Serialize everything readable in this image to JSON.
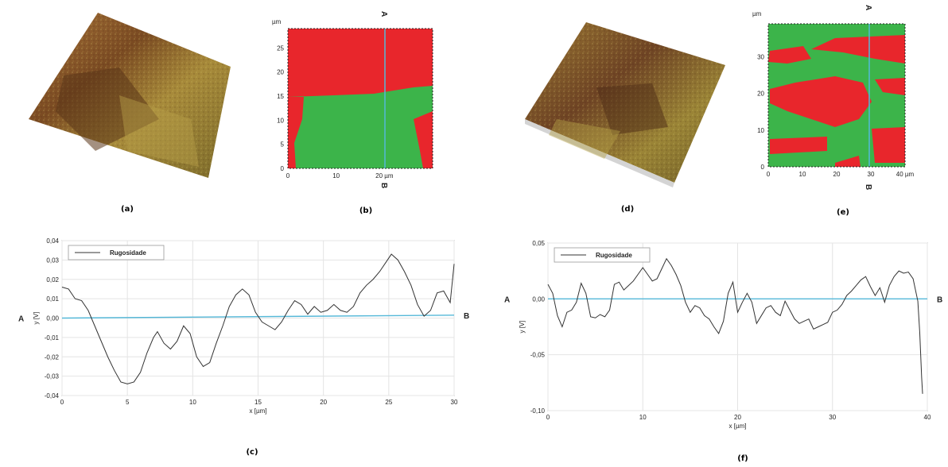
{
  "panels": {
    "a": {
      "caption": "(a)"
    },
    "b": {
      "caption": "(b)",
      "unit_top": "µm",
      "unit_x": "20 µm",
      "label_top": "A",
      "label_bottom": "B",
      "x_ticks": [
        "0",
        "10",
        "20 µm"
      ],
      "y_ticks": [
        "0",
        "5",
        "10",
        "15",
        "20",
        "25"
      ]
    },
    "c": {
      "caption": "(c)"
    },
    "d": {
      "caption": "(d)"
    },
    "e": {
      "caption": "(e)",
      "unit_top": "µm",
      "unit_x": "40 µm",
      "label_top": "A",
      "label_bottom": "B",
      "x_ticks": [
        "0",
        "10",
        "20",
        "30",
        "40 µm"
      ],
      "y_ticks": [
        "0",
        "10",
        "20",
        "30"
      ]
    },
    "f": {
      "caption": "(f)"
    }
  },
  "colors": {
    "red": "#e8262c",
    "green": "#3cb44a",
    "cyan": "#55b8d8",
    "trace": "#333333"
  },
  "chart_data": [
    {
      "type": "line",
      "id": "c",
      "title": "",
      "xlabel": "x [µm]",
      "ylabel": "y [V]",
      "xlim": [
        0,
        30
      ],
      "ylim": [
        -0.04,
        0.04
      ],
      "x_ticks": [
        "0",
        "5",
        "10",
        "15",
        "20",
        "25",
        "30"
      ],
      "y_ticks": [
        "0,04",
        "0,03",
        "0,02",
        "0,01",
        "0,00",
        "-0,01",
        "-0,02",
        "-0,03",
        "-0,04"
      ],
      "legend": "top-left",
      "point_labels": {
        "left": "A",
        "right": "B"
      },
      "series": [
        {
          "name": "Rugosidade",
          "points": [
            [
              0,
              0.016
            ],
            [
              0.5,
              0.015
            ],
            [
              1,
              0.01
            ],
            [
              1.5,
              0.009
            ],
            [
              2,
              0.004
            ],
            [
              2.5,
              -0.004
            ],
            [
              3,
              -0.012
            ],
            [
              3.5,
              -0.02
            ],
            [
              4,
              -0.027
            ],
            [
              4.5,
              -0.033
            ],
            [
              5,
              -0.034
            ],
            [
              5.5,
              -0.033
            ],
            [
              6,
              -0.028
            ],
            [
              6.5,
              -0.018
            ],
            [
              7,
              -0.01
            ],
            [
              7.3,
              -0.007
            ],
            [
              7.8,
              -0.013
            ],
            [
              8.3,
              -0.016
            ],
            [
              8.8,
              -0.012
            ],
            [
              9.3,
              -0.004
            ],
            [
              9.8,
              -0.008
            ],
            [
              10.3,
              -0.02
            ],
            [
              10.8,
              -0.025
            ],
            [
              11.3,
              -0.023
            ],
            [
              11.8,
              -0.013
            ],
            [
              12.3,
              -0.004
            ],
            [
              12.8,
              0.006
            ],
            [
              13.3,
              0.012
            ],
            [
              13.8,
              0.015
            ],
            [
              14.3,
              0.012
            ],
            [
              14.8,
              0.003
            ],
            [
              15.3,
              -0.002
            ],
            [
              15.8,
              -0.004
            ],
            [
              16.3,
              -0.006
            ],
            [
              16.8,
              -0.002
            ],
            [
              17.3,
              0.004
            ],
            [
              17.8,
              0.009
            ],
            [
              18.3,
              0.007
            ],
            [
              18.8,
              0.002
            ],
            [
              19.3,
              0.006
            ],
            [
              19.8,
              0.003
            ],
            [
              20.3,
              0.004
            ],
            [
              20.8,
              0.007
            ],
            [
              21.3,
              0.004
            ],
            [
              21.8,
              0.003
            ],
            [
              22.3,
              0.006
            ],
            [
              22.8,
              0.013
            ],
            [
              23.3,
              0.017
            ],
            [
              23.8,
              0.02
            ],
            [
              24.3,
              0.024
            ],
            [
              24.8,
              0.029
            ],
            [
              25.2,
              0.033
            ],
            [
              25.7,
              0.03
            ],
            [
              26.2,
              0.024
            ],
            [
              26.7,
              0.017
            ],
            [
              27.2,
              0.007
            ],
            [
              27.7,
              0.001
            ],
            [
              28.2,
              0.004
            ],
            [
              28.7,
              0.013
            ],
            [
              29.2,
              0.014
            ],
            [
              29.7,
              0.008
            ],
            [
              30,
              0.028
            ]
          ]
        },
        {
          "name": "",
          "points": [
            [
              0,
              0.0
            ],
            [
              30,
              0.0015
            ]
          ]
        }
      ]
    },
    {
      "type": "line",
      "id": "f",
      "title": "",
      "xlabel": "x [µm]",
      "ylabel": "y [V]",
      "xlim": [
        0,
        40
      ],
      "ylim": [
        -0.1,
        0.05
      ],
      "x_ticks": [
        "0",
        "10",
        "20",
        "30",
        "40"
      ],
      "y_ticks": [
        "0,05",
        "0,00",
        "-0,05",
        "-0,10"
      ],
      "legend": "top-left",
      "point_labels": {
        "left": "A",
        "right": "B"
      },
      "series": [
        {
          "name": "Rugosidade",
          "points": [
            [
              0,
              0.013
            ],
            [
              0.5,
              0.005
            ],
            [
              1,
              -0.015
            ],
            [
              1.5,
              -0.025
            ],
            [
              2,
              -0.012
            ],
            [
              2.5,
              -0.01
            ],
            [
              3,
              -0.003
            ],
            [
              3.5,
              0.014
            ],
            [
              4,
              0.005
            ],
            [
              4.5,
              -0.016
            ],
            [
              5,
              -0.017
            ],
            [
              5.5,
              -0.014
            ],
            [
              6,
              -0.016
            ],
            [
              6.5,
              -0.01
            ],
            [
              7,
              0.013
            ],
            [
              7.5,
              0.015
            ],
            [
              8,
              0.008
            ],
            [
              8.5,
              0.012
            ],
            [
              9,
              0.016
            ],
            [
              9.5,
              0.022
            ],
            [
              10,
              0.028
            ],
            [
              10.5,
              0.022
            ],
            [
              11,
              0.016
            ],
            [
              11.5,
              0.018
            ],
            [
              12,
              0.027
            ],
            [
              12.5,
              0.036
            ],
            [
              13,
              0.03
            ],
            [
              13.5,
              0.022
            ],
            [
              14,
              0.012
            ],
            [
              14.5,
              -0.003
            ],
            [
              15,
              -0.012
            ],
            [
              15.5,
              -0.006
            ],
            [
              16,
              -0.008
            ],
            [
              16.5,
              -0.015
            ],
            [
              17,
              -0.018
            ],
            [
              17.5,
              -0.025
            ],
            [
              18,
              -0.031
            ],
            [
              18.5,
              -0.02
            ],
            [
              19,
              0.005
            ],
            [
              19.5,
              0.015
            ],
            [
              20,
              -0.012
            ],
            [
              20.5,
              -0.003
            ],
            [
              21,
              0.005
            ],
            [
              21.5,
              -0.003
            ],
            [
              22,
              -0.022
            ],
            [
              22.5,
              -0.015
            ],
            [
              23,
              -0.008
            ],
            [
              23.5,
              -0.006
            ],
            [
              24,
              -0.012
            ],
            [
              24.5,
              -0.015
            ],
            [
              25,
              -0.002
            ],
            [
              25.5,
              -0.01
            ],
            [
              26,
              -0.018
            ],
            [
              26.5,
              -0.022
            ],
            [
              27,
              -0.02
            ],
            [
              27.5,
              -0.018
            ],
            [
              28,
              -0.027
            ],
            [
              28.5,
              -0.025
            ],
            [
              29,
              -0.023
            ],
            [
              29.5,
              -0.021
            ],
            [
              30,
              -0.012
            ],
            [
              30.5,
              -0.01
            ],
            [
              31,
              -0.005
            ],
            [
              31.5,
              0.003
            ],
            [
              32,
              0.007
            ],
            [
              32.5,
              0.012
            ],
            [
              33,
              0.017
            ],
            [
              33.5,
              0.02
            ],
            [
              34,
              0.011
            ],
            [
              34.5,
              0.003
            ],
            [
              35,
              0.01
            ],
            [
              35.5,
              -0.003
            ],
            [
              36,
              0.012
            ],
            [
              36.5,
              0.02
            ],
            [
              37,
              0.025
            ],
            [
              37.5,
              0.023
            ],
            [
              38,
              0.024
            ],
            [
              38.5,
              0.018
            ],
            [
              39,
              -0.002
            ],
            [
              39.2,
              -0.03
            ],
            [
              39.4,
              -0.07
            ],
            [
              39.5,
              -0.085
            ]
          ]
        },
        {
          "name": "",
          "points": [
            [
              0,
              0.0
            ],
            [
              40,
              0.0
            ]
          ]
        }
      ]
    }
  ]
}
